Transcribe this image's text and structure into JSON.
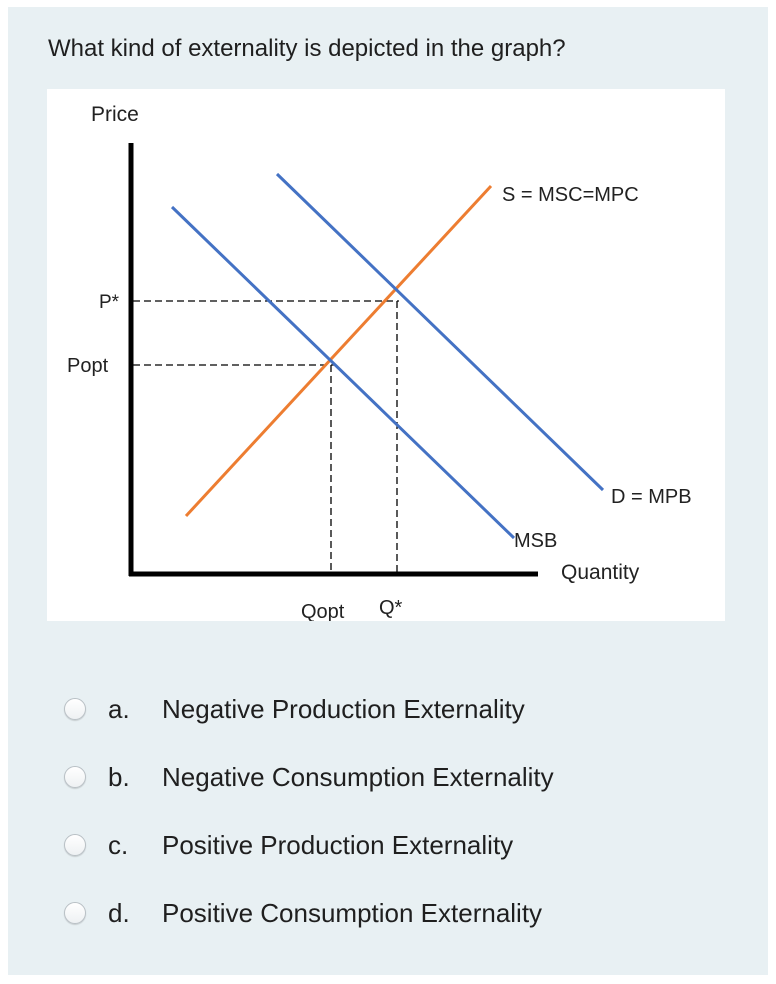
{
  "question": "What kind of externality is depicted in the graph?",
  "graph": {
    "y_axis_label": "Price",
    "x_axis_label": "Quantity",
    "price_labels": {
      "p_star": "P*",
      "p_opt": "Popt"
    },
    "quantity_labels": {
      "q_opt": "Qopt",
      "q_star": "Q*"
    },
    "curve_labels": {
      "supply": "S = MSC=MPC",
      "demand": "D = MPB",
      "msb": "MSB"
    },
    "colors": {
      "supply": "#ed7d31",
      "demand": "#4472c4",
      "msb": "#4472c4",
      "axis": "#000000"
    }
  },
  "options": [
    {
      "letter": "a.",
      "text": "Negative Production Externality"
    },
    {
      "letter": "b.",
      "text": "Negative Consumption Externality"
    },
    {
      "letter": "c.",
      "text": "Positive Production Externality"
    },
    {
      "letter": "d.",
      "text": "Positive Consumption Externality"
    }
  ]
}
